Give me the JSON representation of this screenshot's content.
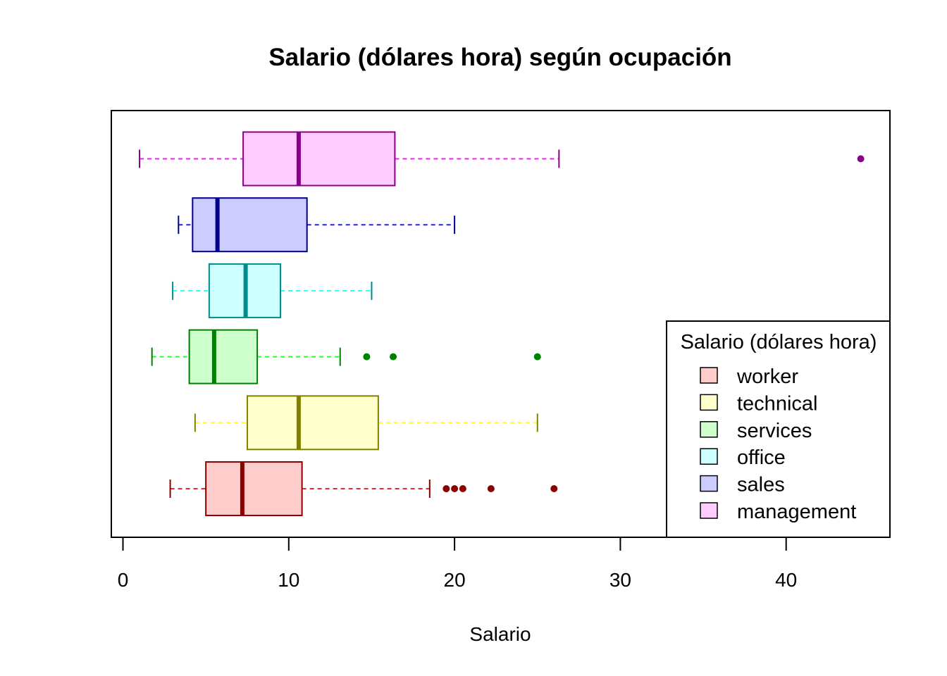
{
  "chart_data": {
    "type": "boxplot",
    "orientation": "horizontal",
    "title": "Salario (dólares hora) según ocupación",
    "xlabel": "Salario",
    "xlim": [
      0,
      45
    ],
    "xticks": [
      0,
      10,
      20,
      30,
      40
    ],
    "grid": false,
    "legend": {
      "title": "Salario (dólares hora)",
      "position": "bottom-right"
    },
    "series": [
      {
        "name": "worker",
        "whisker_low": 2.85,
        "q1": 5.0,
        "median": 7.2,
        "q3": 10.8,
        "whisker_high": 18.5,
        "outliers": [
          19.5,
          20.0,
          20.5,
          22.2,
          26.0
        ],
        "fill": "#ffcccc",
        "border": "#8b0000",
        "whisker_color": "#ee2a2a"
      },
      {
        "name": "technical",
        "whisker_low": 4.35,
        "q1": 7.5,
        "median": 10.6,
        "q3": 15.4,
        "whisker_high": 25.0,
        "outliers": [],
        "fill": "#ffffcc",
        "border": "#808000",
        "whisker_color": "#ffff22"
      },
      {
        "name": "services",
        "whisker_low": 1.75,
        "q1": 4.0,
        "median": 5.5,
        "q3": 8.1,
        "whisker_high": 13.1,
        "outliers": [
          14.7,
          16.3,
          25.0
        ],
        "fill": "#ccffcc",
        "border": "#008000",
        "whisker_color": "#22ff22"
      },
      {
        "name": "office",
        "whisker_low": 3.0,
        "q1": 5.2,
        "median": 7.4,
        "q3": 9.5,
        "whisker_high": 15.0,
        "outliers": [],
        "fill": "#ccffff",
        "border": "#008b8b",
        "whisker_color": "#22ffff"
      },
      {
        "name": "sales",
        "whisker_low": 3.35,
        "q1": 4.2,
        "median": 5.7,
        "q3": 11.1,
        "whisker_high": 20.0,
        "outliers": [],
        "fill": "#ccccff",
        "border": "#00008b",
        "whisker_color": "#2222ee"
      },
      {
        "name": "management",
        "whisker_low": 1.0,
        "q1": 7.25,
        "median": 10.6,
        "q3": 16.4,
        "whisker_high": 26.3,
        "outliers": [
          44.5
        ],
        "fill": "#ffccff",
        "border": "#8b008b",
        "whisker_color": "#ee22ee"
      }
    ]
  }
}
